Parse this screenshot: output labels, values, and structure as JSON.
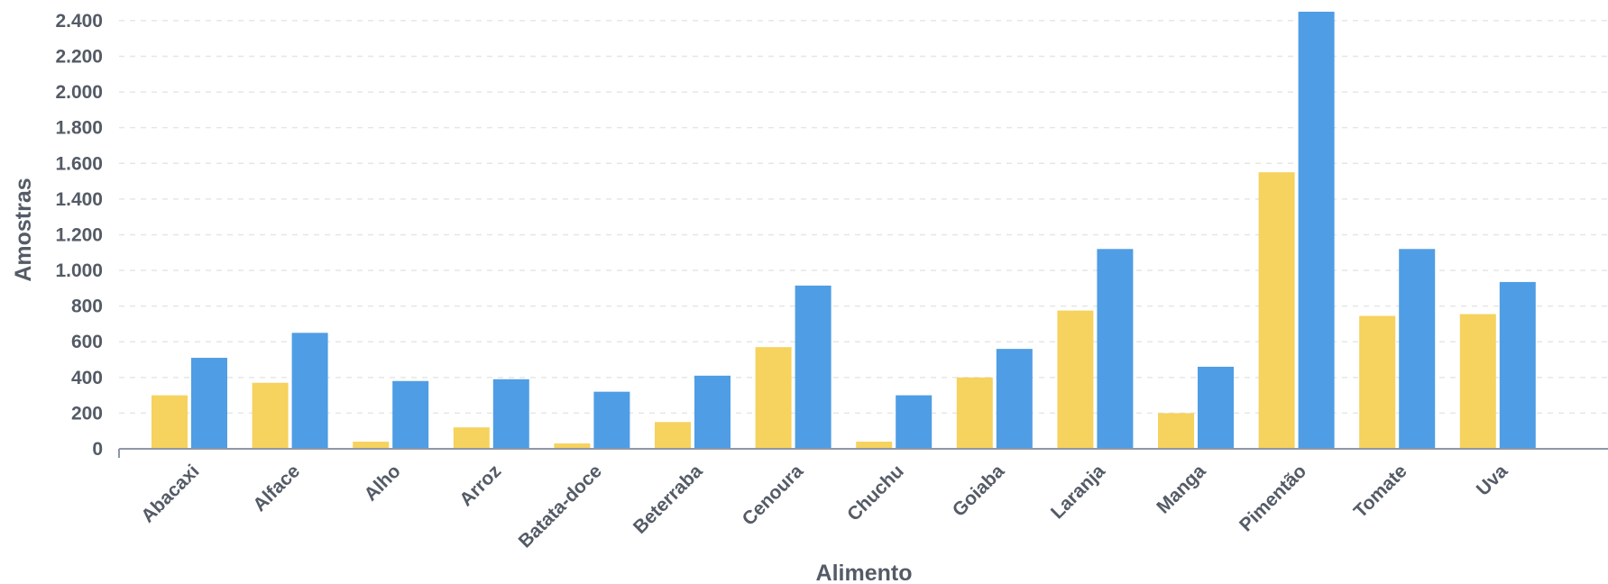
{
  "chart_data": {
    "type": "bar",
    "title": "",
    "xlabel": "Alimento",
    "ylabel": "Amostras",
    "categories": [
      "Abacaxi",
      "Alface",
      "Alho",
      "Arroz",
      "Batata-doce",
      "Beterraba",
      "Cenoura",
      "Chuchu",
      "Goiaba",
      "Laranja",
      "Manga",
      "Pimentão",
      "Tomate",
      "Uva"
    ],
    "series": [
      {
        "color": "#f6d25e",
        "values": [
          300,
          370,
          40,
          120,
          30,
          150,
          570,
          40,
          400,
          775,
          200,
          1550,
          745,
          755
        ]
      },
      {
        "color": "#4f9de4",
        "values": [
          510,
          650,
          380,
          390,
          320,
          410,
          915,
          300,
          560,
          1120,
          460,
          2450,
          1120,
          935
        ]
      }
    ],
    "ylim": [
      0,
      2450
    ],
    "yticks": [
      {
        "value": 0,
        "label": "0"
      },
      {
        "value": 200,
        "label": "200"
      },
      {
        "value": 400,
        "label": "400"
      },
      {
        "value": 600,
        "label": "600"
      },
      {
        "value": 800,
        "label": "800"
      },
      {
        "value": 1000,
        "label": "1.000"
      },
      {
        "value": 1200,
        "label": "1.200"
      },
      {
        "value": 1400,
        "label": "1.400"
      },
      {
        "value": 1600,
        "label": "1.600"
      },
      {
        "value": 1800,
        "label": "1.800"
      },
      {
        "value": 2000,
        "label": "2.000"
      },
      {
        "value": 2200,
        "label": "2.200"
      },
      {
        "value": 2400,
        "label": "2.400"
      }
    ],
    "grid": true,
    "legend": "none"
  }
}
